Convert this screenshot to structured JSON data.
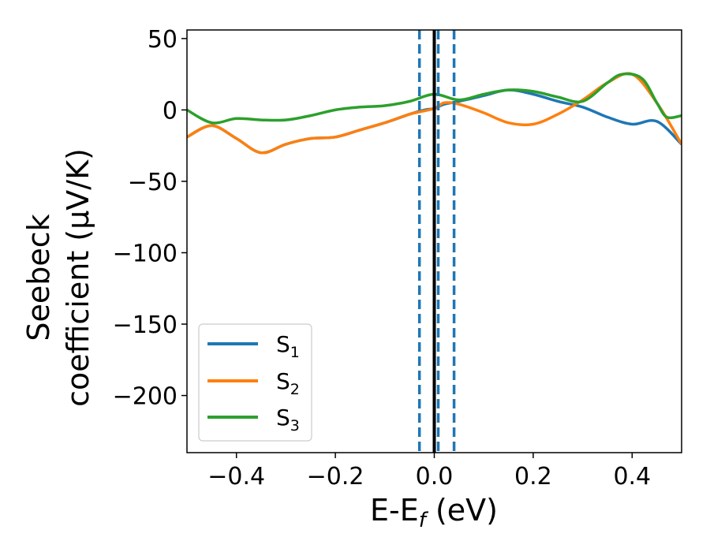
{
  "chart_data": {
    "type": "line",
    "xlabel": "E-E",
    "xlabel_sub": "f",
    "xlabel_unit": " (eV)",
    "ylabel_line1": "Seebeck",
    "ylabel_line2": "coefficient  (μV/K)",
    "xlim": [
      -0.5,
      0.5
    ],
    "ylim": [
      -240,
      56
    ],
    "xticks": [
      -0.4,
      -0.2,
      0.0,
      0.2,
      0.4
    ],
    "xtick_labels": [
      "−0.4",
      "−0.2",
      "0.0",
      "0.2",
      "0.4"
    ],
    "yticks": [
      50,
      0,
      -50,
      -100,
      -150,
      -200
    ],
    "ytick_labels": [
      "50",
      "0",
      "−50",
      "−100",
      "−150",
      "−200"
    ],
    "vlines": [
      {
        "x": 0.0,
        "style": "solid",
        "color": "#000000"
      },
      {
        "x": -0.03,
        "style": "dashed",
        "color": "#1f77b4"
      },
      {
        "x": 0.008,
        "style": "dashed",
        "color": "#1f77b4"
      },
      {
        "x": 0.04,
        "style": "dashed",
        "color": "#1f77b4"
      }
    ],
    "legend_position": "lower-left",
    "series": [
      {
        "name": "S",
        "sub": "1",
        "color": "#1f77b4",
        "x": [
          -0.5,
          -0.45,
          -0.4,
          -0.35,
          -0.3,
          -0.25,
          -0.2,
          -0.15,
          -0.1,
          -0.05,
          -0.02,
          0.0,
          0.02,
          0.05,
          0.1,
          0.15,
          0.2,
          0.25,
          0.3,
          0.35,
          0.4,
          0.45,
          0.5
        ],
        "values": [
          -19,
          -11,
          -20,
          -30,
          -24,
          -20,
          -19,
          -14,
          -9,
          -3,
          0,
          1,
          4,
          6,
          10,
          14,
          11,
          6,
          2,
          -5,
          -10,
          -8,
          -24
        ]
      },
      {
        "name": "S",
        "sub": "2",
        "color": "#ff7f0e",
        "x": [
          -0.5,
          -0.45,
          -0.4,
          -0.35,
          -0.3,
          -0.25,
          -0.2,
          -0.15,
          -0.1,
          -0.05,
          0.0,
          0.02,
          0.05,
          0.1,
          0.15,
          0.2,
          0.25,
          0.3,
          0.35,
          0.4,
          0.45,
          0.5
        ],
        "values": [
          -19,
          -11,
          -20,
          -30,
          -24,
          -20,
          -19,
          -14,
          -9,
          -3,
          1,
          5,
          4,
          -2,
          -9,
          -10,
          -3,
          7,
          19,
          25,
          5,
          -24
        ]
      },
      {
        "name": "S",
        "sub": "3",
        "color": "#2ca02c",
        "x": [
          -0.5,
          -0.45,
          -0.4,
          -0.35,
          -0.3,
          -0.25,
          -0.2,
          -0.15,
          -0.1,
          -0.05,
          0.0,
          0.05,
          0.1,
          0.15,
          0.2,
          0.25,
          0.3,
          0.35,
          0.38,
          0.42,
          0.45,
          0.47,
          0.5
        ],
        "values": [
          0,
          -9,
          -6,
          -7,
          -7,
          -4,
          0,
          2,
          3,
          6,
          11,
          7,
          11,
          14,
          13,
          9,
          6,
          19,
          25,
          22,
          5,
          -5,
          -4
        ]
      }
    ]
  }
}
